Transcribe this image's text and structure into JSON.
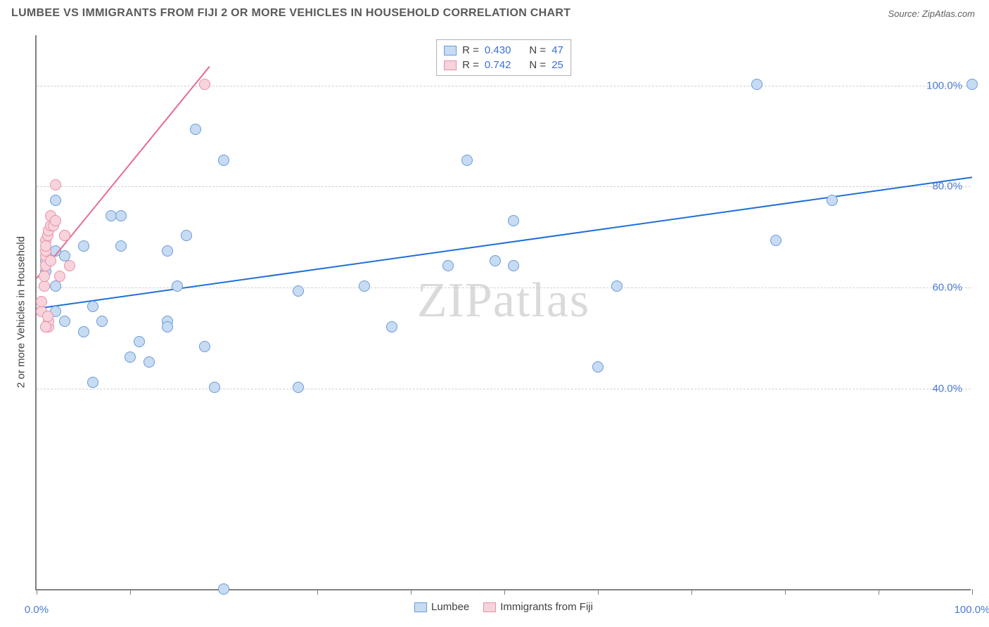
{
  "header": {
    "title": "LUMBEE VS IMMIGRANTS FROM FIJI 2 OR MORE VEHICLES IN HOUSEHOLD CORRELATION CHART",
    "source_prefix": "Source: ",
    "source_name": "ZipAtlas.com"
  },
  "chart": {
    "type": "scatter",
    "y_axis_label": "2 or more Vehicles in Household",
    "watermark": "ZIPatlas",
    "xlim": [
      0,
      100
    ],
    "ylim": [
      0,
      110
    ],
    "x_ticks": [
      0,
      10,
      20,
      30,
      40,
      50,
      60,
      70,
      80,
      90,
      100
    ],
    "x_tick_labels": {
      "0": "0.0%",
      "100": "100.0%"
    },
    "y_gridlines": [
      40,
      60,
      80,
      100
    ],
    "y_tick_labels": {
      "40": "40.0%",
      "60": "60.0%",
      "80": "80.0%",
      "100": "100.0%"
    },
    "background_color": "#ffffff",
    "grid_color": "#d0d0d0",
    "axis_color": "#808080",
    "tick_label_color": "#4a7bd0",
    "axis_label_color": "#404040",
    "point_radius": 8,
    "series": [
      {
        "name": "Lumbee",
        "fill": "#c7dbf2",
        "stroke": "#6a9bd8",
        "trend_color": "#1e6fd9",
        "trend": {
          "x1": 0,
          "y1": 56,
          "x2": 100,
          "y2": 82
        },
        "r_value": "0.430",
        "n_value": "47",
        "points": [
          [
            1,
            52
          ],
          [
            1,
            63
          ],
          [
            1,
            64
          ],
          [
            1,
            65
          ],
          [
            2,
            67
          ],
          [
            2,
            77
          ],
          [
            2,
            60
          ],
          [
            2,
            55
          ],
          [
            3,
            53
          ],
          [
            3,
            66
          ],
          [
            3,
            70
          ],
          [
            5,
            51
          ],
          [
            5,
            68
          ],
          [
            6,
            41
          ],
          [
            6,
            56
          ],
          [
            7,
            53
          ],
          [
            8,
            74
          ],
          [
            9,
            74
          ],
          [
            9,
            68
          ],
          [
            10,
            46
          ],
          [
            11,
            49
          ],
          [
            12,
            45
          ],
          [
            14,
            53
          ],
          [
            14,
            52
          ],
          [
            15,
            60
          ],
          [
            14,
            67
          ],
          [
            16,
            70
          ],
          [
            17,
            91
          ],
          [
            18,
            48
          ],
          [
            19,
            40
          ],
          [
            20,
            85
          ],
          [
            20,
            0
          ],
          [
            28,
            59
          ],
          [
            28,
            40
          ],
          [
            35,
            60
          ],
          [
            38,
            52
          ],
          [
            44,
            64
          ],
          [
            46,
            85
          ],
          [
            49,
            65
          ],
          [
            51,
            73
          ],
          [
            51,
            64
          ],
          [
            60,
            44
          ],
          [
            62,
            60
          ],
          [
            77,
            100
          ],
          [
            79,
            69
          ],
          [
            85,
            77
          ],
          [
            100,
            100
          ]
        ]
      },
      {
        "name": "Immigrants from Fiji",
        "fill": "#f7d3dc",
        "stroke": "#e890a8",
        "trend_color": "#e76b94",
        "trend": {
          "x1": 0,
          "y1": 62,
          "x2": 18.5,
          "y2": 104
        },
        "r_value": "0.742",
        "n_value": "25",
        "points": [
          [
            0.5,
            55
          ],
          [
            0.5,
            57
          ],
          [
            0.8,
            60
          ],
          [
            0.8,
            62
          ],
          [
            1,
            64
          ],
          [
            1,
            66
          ],
          [
            1,
            67
          ],
          [
            1,
            69
          ],
          [
            1,
            68
          ],
          [
            1.2,
            70
          ],
          [
            1.3,
            71
          ],
          [
            1.5,
            72
          ],
          [
            1.5,
            74
          ],
          [
            1.5,
            65
          ],
          [
            1.8,
            72
          ],
          [
            2,
            73
          ],
          [
            2,
            80
          ],
          [
            1.3,
            52
          ],
          [
            1.3,
            53
          ],
          [
            1,
            52
          ],
          [
            1.2,
            54
          ],
          [
            2.5,
            62
          ],
          [
            3,
            70
          ],
          [
            3.5,
            64
          ],
          [
            18,
            100
          ]
        ]
      }
    ],
    "stats_labels": {
      "r": "R =",
      "n": "N ="
    },
    "legend_labels": {
      "series1": "Lumbee",
      "series2": "Immigrants from Fiji"
    }
  }
}
